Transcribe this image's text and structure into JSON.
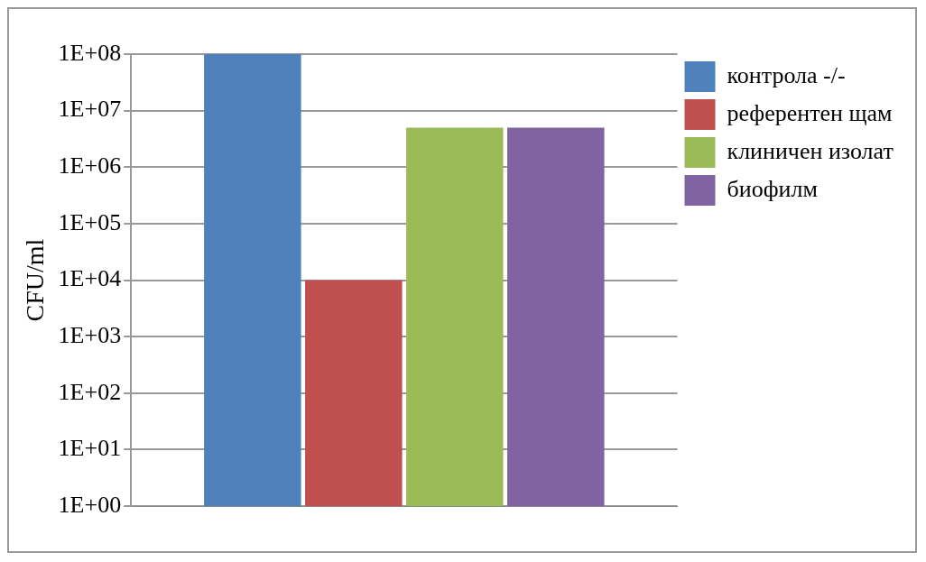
{
  "chart_data": {
    "type": "bar",
    "categories": [
      null
    ],
    "series": [
      {
        "name": "контрола -/-",
        "color": "#4f81bd",
        "values": [
          100000000
        ]
      },
      {
        "name": "референтен щам",
        "color": "#c0504d",
        "values": [
          10000
        ]
      },
      {
        "name": "клиничен изолат",
        "color": "#9bbb59",
        "values": [
          5000000
        ]
      },
      {
        "name": "биофилм",
        "color": "#8064a2",
        "values": [
          5000000
        ]
      }
    ],
    "ylabel": "CFU/ml",
    "log": "y",
    "ylim": [
      1,
      100000000
    ],
    "yticks": [
      {
        "value": 1,
        "label": "1E+00"
      },
      {
        "value": 10,
        "label": "1E+01"
      },
      {
        "value": 100,
        "label": "1E+02"
      },
      {
        "value": 1000,
        "label": "1E+03"
      },
      {
        "value": 10000,
        "label": "1E+04"
      },
      {
        "value": 100000,
        "label": "1E+05"
      },
      {
        "value": 1000000,
        "label": "1E+06"
      },
      {
        "value": 10000000,
        "label": "1E+07"
      },
      {
        "value": 100000000,
        "label": "1E+08"
      }
    ],
    "grid": "y",
    "legend": "top right",
    "tick_labels": "y"
  }
}
